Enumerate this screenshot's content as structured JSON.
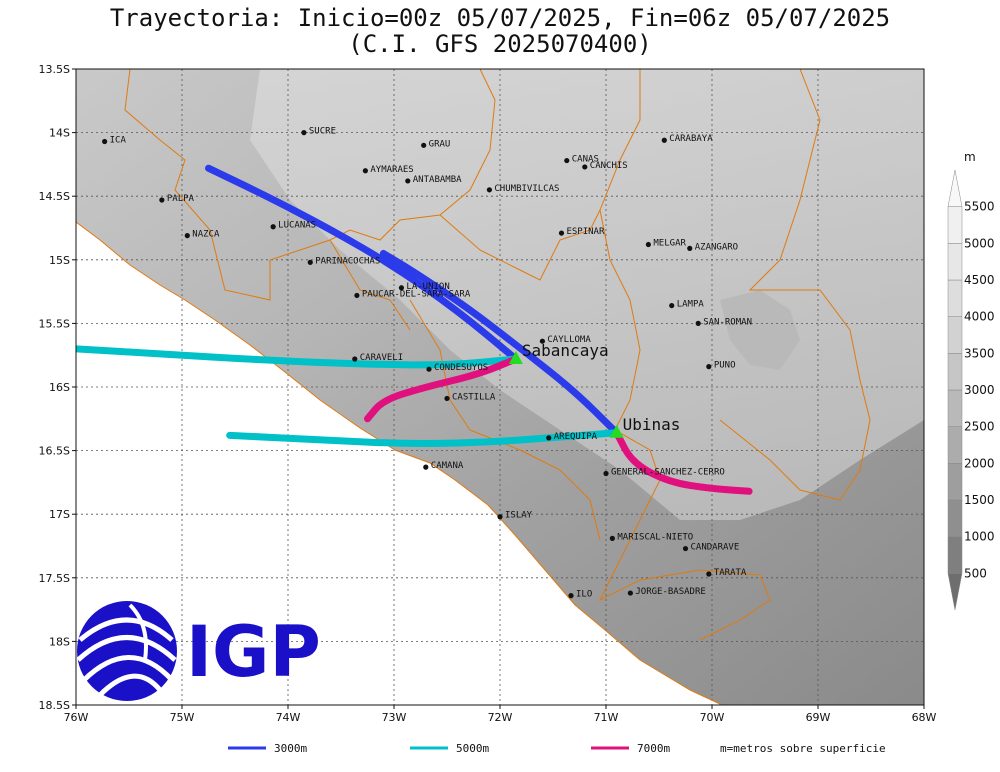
{
  "title": {
    "line1": "Trayectoria: Inicio=00z 05/07/2025, Fin=06z 05/07/2025",
    "line2": "(C.I. GFS 2025070400)"
  },
  "map": {
    "lon_range": [
      -76,
      -68
    ],
    "lat_range": [
      -18.5,
      -13.5
    ],
    "lon_ticks": [
      {
        "v": -76,
        "label": "76W"
      },
      {
        "v": -75,
        "label": "75W"
      },
      {
        "v": -74,
        "label": "74W"
      },
      {
        "v": -73,
        "label": "73W"
      },
      {
        "v": -72,
        "label": "72W"
      },
      {
        "v": -71,
        "label": "71W"
      },
      {
        "v": -70,
        "label": "70W"
      },
      {
        "v": -69,
        "label": "69W"
      },
      {
        "v": -68,
        "label": "68W"
      }
    ],
    "lat_ticks": [
      {
        "v": -13.5,
        "label": "13.5S"
      },
      {
        "v": -14,
        "label": "14S"
      },
      {
        "v": -14.5,
        "label": "14.5S"
      },
      {
        "v": -15,
        "label": "15S"
      },
      {
        "v": -15.5,
        "label": "15.5S"
      },
      {
        "v": -16,
        "label": "16S"
      },
      {
        "v": -16.5,
        "label": "16.5S"
      },
      {
        "v": -17,
        "label": "17S"
      },
      {
        "v": -17.5,
        "label": "17.5S"
      },
      {
        "v": -18,
        "label": "18S"
      },
      {
        "v": -18.5,
        "label": "18.5S"
      }
    ],
    "grid": "dotted"
  },
  "places": [
    {
      "name": "ICA",
      "lon": -75.73,
      "lat": -14.07
    },
    {
      "name": "SUCRE",
      "lon": -73.85,
      "lat": -14.0
    },
    {
      "name": "GRAU",
      "lon": -72.72,
      "lat": -14.1
    },
    {
      "name": "AYMARAES",
      "lon": -73.27,
      "lat": -14.3
    },
    {
      "name": "ANTABAMBA",
      "lon": -72.87,
      "lat": -14.38
    },
    {
      "name": "CANAS",
      "lon": -71.37,
      "lat": -14.22
    },
    {
      "name": "CANCHIS",
      "lon": -71.2,
      "lat": -14.27
    },
    {
      "name": "CHUMBIVILCAS",
      "lon": -72.1,
      "lat": -14.45
    },
    {
      "name": "CARABAYA",
      "lon": -70.45,
      "lat": -14.06
    },
    {
      "name": "PALPA",
      "lon": -75.19,
      "lat": -14.53
    },
    {
      "name": "NAZCA",
      "lon": -74.95,
      "lat": -14.81
    },
    {
      "name": "LUCANAS",
      "lon": -74.14,
      "lat": -14.74
    },
    {
      "name": "ESPINAR",
      "lon": -71.42,
      "lat": -14.79
    },
    {
      "name": "MELGAR",
      "lon": -70.6,
      "lat": -14.88
    },
    {
      "name": "AZANGARO",
      "lon": -70.21,
      "lat": -14.91
    },
    {
      "name": "PARINACOCHAS",
      "lon": -73.79,
      "lat": -15.02
    },
    {
      "name": "LA-UNION",
      "lon": -72.93,
      "lat": -15.22
    },
    {
      "name": "PAUCAR-DEL-SARA-SARA",
      "lon": -73.35,
      "lat": -15.28
    },
    {
      "name": "LAMPA",
      "lon": -70.38,
      "lat": -15.36
    },
    {
      "name": "SAN-ROMAN",
      "lon": -70.13,
      "lat": -15.5
    },
    {
      "name": "CAYLLOMA",
      "lon": -71.6,
      "lat": -15.64
    },
    {
      "name": "CARAVELI",
      "lon": -73.37,
      "lat": -15.78
    },
    {
      "name": "CONDESUYOS",
      "lon": -72.67,
      "lat": -15.86
    },
    {
      "name": "PUNO",
      "lon": -70.03,
      "lat": -15.84
    },
    {
      "name": "CASTILLA",
      "lon": -72.5,
      "lat": -16.09
    },
    {
      "name": "AREQUIPA",
      "lon": -71.54,
      "lat": -16.4
    },
    {
      "name": "GENERAL-SANCHEZ-CERRO",
      "lon": -71.0,
      "lat": -16.68
    },
    {
      "name": "CAMANA",
      "lon": -72.7,
      "lat": -16.63
    },
    {
      "name": "ISLAY",
      "lon": -72.0,
      "lat": -17.02
    },
    {
      "name": "MARISCAL-NIETO",
      "lon": -70.94,
      "lat": -17.19
    },
    {
      "name": "CANDARAVE",
      "lon": -70.25,
      "lat": -17.27
    },
    {
      "name": "TARATA",
      "lon": -70.03,
      "lat": -17.47
    },
    {
      "name": "ILO",
      "lon": -71.33,
      "lat": -17.64
    },
    {
      "name": "JORGE-BASADRE",
      "lon": -70.77,
      "lat": -17.62
    }
  ],
  "volcanoes": [
    {
      "name": "Sabancaya",
      "lon": -71.85,
      "lat": -15.78
    },
    {
      "name": "Ubinas",
      "lon": -70.9,
      "lat": -16.36
    }
  ],
  "trajectories": [
    {
      "volcano": "Sabancaya",
      "level": "3000m",
      "color": "#2b3bea",
      "path": [
        [
          -71.85,
          -15.78
        ],
        [
          -72.4,
          -15.4
        ],
        [
          -73.0,
          -15.05
        ],
        [
          -73.6,
          -14.76
        ],
        [
          -74.2,
          -14.5
        ],
        [
          -74.75,
          -14.28
        ]
      ]
    },
    {
      "volcano": "Sabancaya",
      "level": "5000m",
      "color": "#00c0c8",
      "path": [
        [
          -71.85,
          -15.78
        ],
        [
          -72.5,
          -15.83
        ],
        [
          -73.3,
          -15.82
        ],
        [
          -74.2,
          -15.79
        ],
        [
          -75.2,
          -15.74
        ],
        [
          -76.0,
          -15.7
        ]
      ]
    },
    {
      "volcano": "Sabancaya",
      "level": "7000m",
      "color": "#e0107e",
      "path": [
        [
          -71.85,
          -15.78
        ],
        [
          -72.2,
          -15.9
        ],
        [
          -72.7,
          -16.0
        ],
        [
          -73.1,
          -16.1
        ],
        [
          -73.25,
          -16.25
        ]
      ]
    },
    {
      "volcano": "Ubinas",
      "level": "3000m",
      "color": "#2b3bea",
      "path": [
        [
          -70.9,
          -16.36
        ],
        [
          -71.3,
          -16.03
        ],
        [
          -71.8,
          -15.7
        ],
        [
          -72.3,
          -15.38
        ],
        [
          -72.8,
          -15.1
        ],
        [
          -73.1,
          -14.95
        ]
      ]
    },
    {
      "volcano": "Ubinas",
      "level": "5000m",
      "color": "#00c0c8",
      "path": [
        [
          -70.9,
          -16.36
        ],
        [
          -71.4,
          -16.39
        ],
        [
          -72.0,
          -16.43
        ],
        [
          -72.8,
          -16.45
        ],
        [
          -73.6,
          -16.42
        ],
        [
          -74.55,
          -16.38
        ]
      ]
    },
    {
      "volcano": "Ubinas",
      "level": "7000m",
      "color": "#e0107e",
      "path": [
        [
          -70.9,
          -16.36
        ],
        [
          -70.75,
          -16.6
        ],
        [
          -70.4,
          -16.75
        ],
        [
          -70.0,
          -16.8
        ],
        [
          -69.65,
          -16.82
        ]
      ]
    }
  ],
  "legend": {
    "items": [
      {
        "label": "3000m",
        "color": "#2b3bea"
      },
      {
        "label": "5000m",
        "color": "#00c0c8"
      },
      {
        "label": "7000m",
        "color": "#e0107e"
      }
    ],
    "note": "m=metros sobre superficie"
  },
  "colorbar": {
    "unit": "m",
    "levels": [
      "500",
      "1000",
      "1500",
      "2000",
      "2500",
      "3000",
      "3500",
      "4000",
      "4500",
      "5000",
      "5500"
    ],
    "colors": [
      "#6e6e6e",
      "#7f7f7f",
      "#8f8f8f",
      "#9e9e9e",
      "#acacac",
      "#b9b9b9",
      "#c6c6c6",
      "#d2d2d2",
      "#dddddd",
      "#e7e7e7",
      "#f0f0f0",
      "#f8f8f8"
    ]
  },
  "logo": {
    "text": "IGP",
    "color": "#1a10c8"
  }
}
